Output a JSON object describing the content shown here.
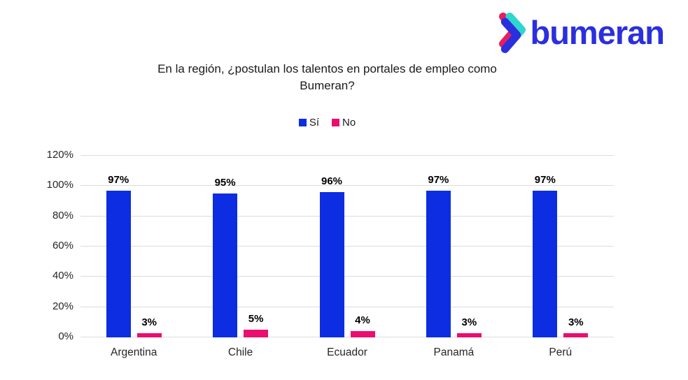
{
  "logo": {
    "text": "bumeran",
    "colors": {
      "blue": "#2b2fde",
      "teal": "#2fd6cd",
      "pink": "#e81e5a"
    }
  },
  "title": {
    "line1": "En la región, ¿postulan los talentos en portales de empleo como",
    "line2": "Bumeran?"
  },
  "chart_data": {
    "type": "bar",
    "title": "En la región, ¿postulan los talentos en portales de empleo como Bumeran?",
    "categories": [
      "Argentina",
      "Chile",
      "Ecuador",
      "Panamá",
      "Perú"
    ],
    "series": [
      {
        "name": "Sí",
        "key": "si",
        "color": "#0c2de1",
        "values": [
          97,
          95,
          96,
          97,
          97
        ]
      },
      {
        "name": "No",
        "key": "no",
        "color": "#e90e6f",
        "values": [
          3,
          5,
          4,
          3,
          3
        ]
      }
    ],
    "value_suffix": "%",
    "ylim": [
      0,
      120
    ],
    "ytick_step": 20,
    "yticks": [
      "0%",
      "20%",
      "40%",
      "60%",
      "80%",
      "100%",
      "120%"
    ],
    "grid": true,
    "legend_position": "top-center",
    "xlabel": "",
    "ylabel": ""
  }
}
